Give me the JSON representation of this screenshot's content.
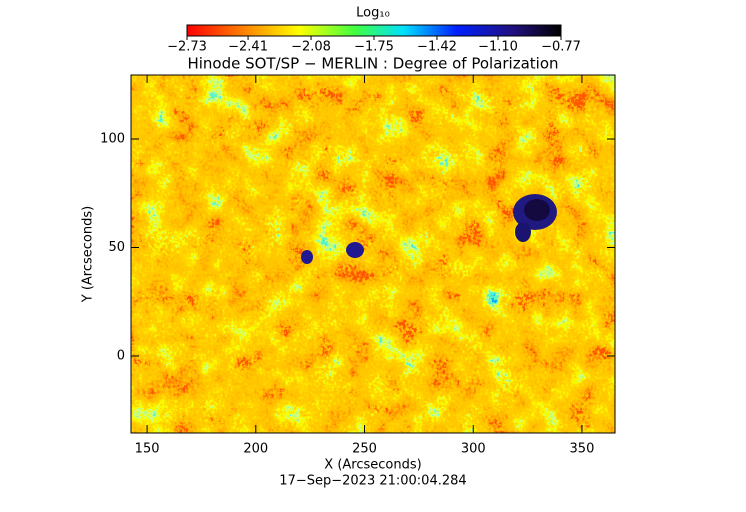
{
  "chart_data": {
    "type": "heatmap",
    "title": "Hinode SOT/SP − MERLIN : Degree of Polarization",
    "x_label": "X (Arcseconds)",
    "y_label": "Y (Arcseconds)",
    "timestamp": "17−Sep−2023 21:00:04.284",
    "colorbar_label": "Log₁₀",
    "clim": [
      -2.73,
      -0.77
    ],
    "cticks": [
      {
        "value": -2.73,
        "label": "−2.73"
      },
      {
        "value": -2.41,
        "label": "−2.41"
      },
      {
        "value": -2.08,
        "label": "−2.08"
      },
      {
        "value": -1.75,
        "label": "−1.75"
      },
      {
        "value": -1.42,
        "label": "−1.42"
      },
      {
        "value": -1.1,
        "label": "−1.10"
      },
      {
        "value": -0.77,
        "label": "−0.77"
      }
    ],
    "xlim": [
      142.6,
      365.2
    ],
    "xticks": [
      150,
      200,
      250,
      300,
      350
    ],
    "ylim": [
      -35.5,
      129.5
    ],
    "yticks": [
      0,
      50,
      100
    ]
  }
}
